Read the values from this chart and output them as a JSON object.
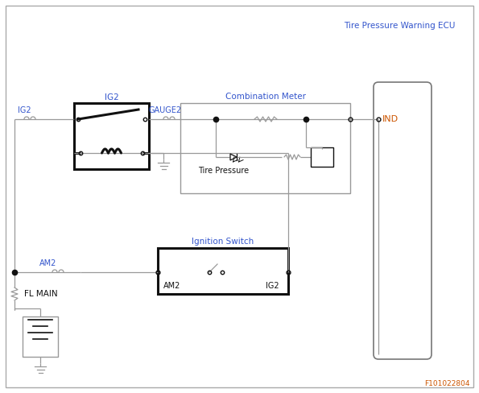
{
  "title": "Tire Pressure Warning ECU",
  "combination_meter_label": "Combination Meter",
  "ignition_switch_label": "Ignition Switch",
  "ig2_relay_label": "IG2",
  "ig2_connector_label": "IG2",
  "gauge2_label": "GAUGE2",
  "am2_label": "AM2",
  "fl_main_label": "FL MAIN",
  "ind_label": "IND",
  "tire_pressure_label": "Tire Pressure",
  "am2_switch_label": "AM2",
  "ig2_switch_label": "IG2",
  "bg_color": "#ffffff",
  "wire_color": "#999999",
  "thick_wire_color": "#111111",
  "text_color_blue": "#3355cc",
  "text_color_orange": "#cc5500",
  "box_color": "#111111",
  "fig_code": "F101022804",
  "fig_width": 5.95,
  "fig_height": 4.88,
  "dpi": 100
}
